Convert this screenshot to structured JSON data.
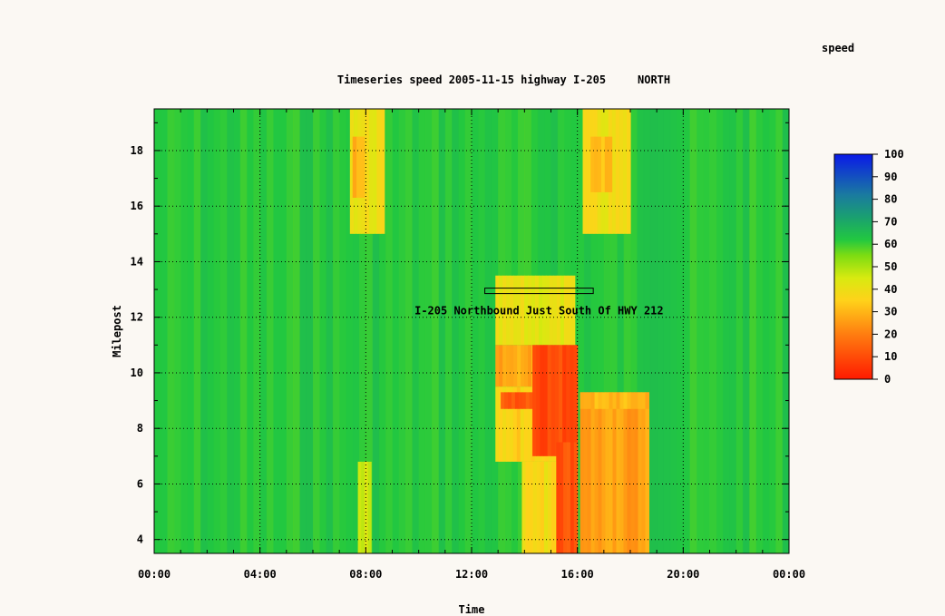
{
  "chart_data": {
    "type": "heatmap",
    "title": "Timeseries speed 2005-11-15 highway I-205",
    "direction": "NORTH",
    "xlabel": "Time",
    "ylabel": "Milepost",
    "xlim": [
      0,
      24
    ],
    "ylim": [
      3.5,
      19.5
    ],
    "x_ticks": [
      {
        "value": 0,
        "label": "00:00"
      },
      {
        "value": 4,
        "label": "04:00"
      },
      {
        "value": 8,
        "label": "08:00"
      },
      {
        "value": 12,
        "label": "12:00"
      },
      {
        "value": 16,
        "label": "16:00"
      },
      {
        "value": 20,
        "label": "20:00"
      },
      {
        "value": 24,
        "label": "00:00"
      }
    ],
    "y_ticks": [
      4,
      6,
      8,
      10,
      12,
      14,
      16,
      18
    ],
    "grid": true,
    "colorbar": {
      "label": "speed",
      "min": 0,
      "max": 100,
      "ticks": [
        100,
        90,
        80,
        70,
        60,
        50,
        40,
        30,
        20,
        10,
        0
      ],
      "stops": [
        {
          "value": 0,
          "color": "#ff1a00"
        },
        {
          "value": 20,
          "color": "#ff7d10"
        },
        {
          "value": 35,
          "color": "#ffd21a"
        },
        {
          "value": 45,
          "color": "#d8ea10"
        },
        {
          "value": 55,
          "color": "#7ddc12"
        },
        {
          "value": 62,
          "color": "#22c840"
        },
        {
          "value": 72,
          "color": "#1aa070"
        },
        {
          "value": 82,
          "color": "#1a7aa0"
        },
        {
          "value": 100,
          "color": "#0a1ae8"
        }
      ]
    },
    "baseline_speed": 62,
    "regions": [
      {
        "t": [
          7.4,
          8.7
        ],
        "mp": [
          15.0,
          19.5
        ],
        "speed": 40
      },
      {
        "t": [
          7.5,
          7.95
        ],
        "mp": [
          16.3,
          18.5
        ],
        "speed": 30
      },
      {
        "t": [
          7.7,
          8.2
        ],
        "mp": [
          3.5,
          6.8
        ],
        "speed": 45
      },
      {
        "t": [
          16.2,
          18.0
        ],
        "mp": [
          15.0,
          19.5
        ],
        "speed": 40
      },
      {
        "t": [
          16.5,
          17.3
        ],
        "mp": [
          16.5,
          18.5
        ],
        "speed": 32
      },
      {
        "t": [
          12.9,
          15.9
        ],
        "mp": [
          11.0,
          13.5
        ],
        "speed": 42
      },
      {
        "t": [
          12.9,
          15.9
        ],
        "mp": [
          9.5,
          11.0
        ],
        "speed": 28
      },
      {
        "t": [
          12.9,
          16.0
        ],
        "mp": [
          6.8,
          9.5
        ],
        "speed": 35
      },
      {
        "t": [
          13.9,
          16.0
        ],
        "mp": [
          3.5,
          6.8
        ],
        "speed": 38
      },
      {
        "t": [
          13.1,
          15.0
        ],
        "mp": [
          8.7,
          9.3
        ],
        "speed": 12
      },
      {
        "t": [
          14.3,
          16.0
        ],
        "mp": [
          7.0,
          11.0
        ],
        "speed": 10
      },
      {
        "t": [
          15.2,
          16.0
        ],
        "mp": [
          3.5,
          7.5
        ],
        "speed": 12
      },
      {
        "t": [
          16.1,
          18.7
        ],
        "mp": [
          3.5,
          9.3
        ],
        "speed": 26
      },
      {
        "t": [
          16.1,
          18.7
        ],
        "mp": [
          8.7,
          9.3
        ],
        "speed": 30
      }
    ],
    "annotation": {
      "text": "I-205 Northbound Just South Of HWY 212",
      "marker_range_t": [
        12.5,
        16.6
      ],
      "marker_mp": 12.95
    }
  }
}
